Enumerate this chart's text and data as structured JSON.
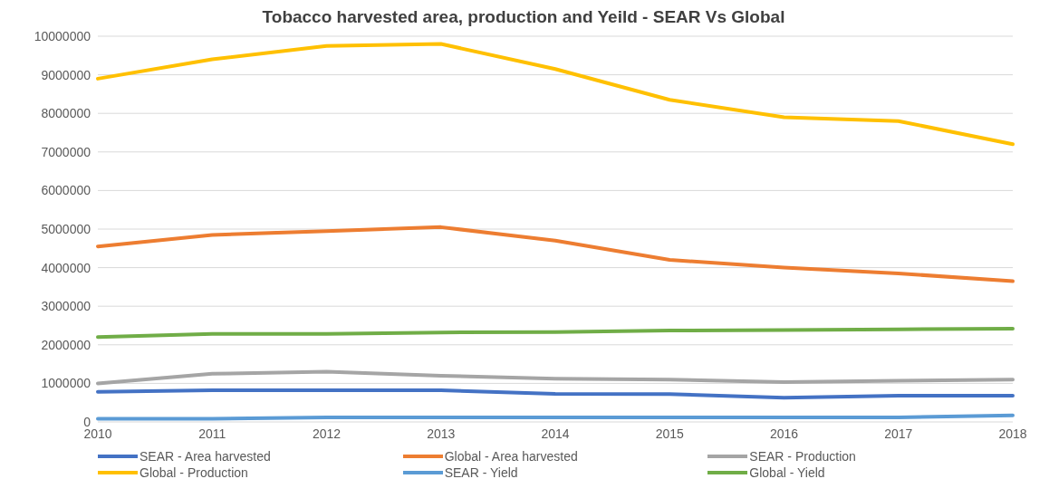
{
  "chart_data": {
    "type": "line",
    "title": "Tobacco harvested area, production and Yeild - SEAR Vs Global",
    "categories": [
      "2010",
      "2011",
      "2012",
      "2013",
      "2014",
      "2015",
      "2016",
      "2017",
      "2018"
    ],
    "series": [
      {
        "name": "SEAR - Area harvested",
        "color": "#4472c4",
        "values": [
          780000,
          820000,
          820000,
          820000,
          730000,
          720000,
          630000,
          680000,
          680000
        ]
      },
      {
        "name": "Global - Area harvested",
        "color": "#ed7d31",
        "values": [
          4550000,
          4850000,
          4950000,
          5050000,
          4700000,
          4200000,
          4000000,
          3850000,
          3650000
        ]
      },
      {
        "name": "SEAR - Production",
        "color": "#a5a5a5",
        "values": [
          1000000,
          1250000,
          1300000,
          1200000,
          1120000,
          1100000,
          1030000,
          1070000,
          1100000
        ]
      },
      {
        "name": "Global - Production",
        "color": "#ffc000",
        "values": [
          8900000,
          9400000,
          9750000,
          9800000,
          9150000,
          8350000,
          7900000,
          7800000,
          7200000
        ]
      },
      {
        "name": "SEAR - Yield",
        "color": "#5b9bd5",
        "values": [
          80000,
          80000,
          120000,
          120000,
          120000,
          120000,
          120000,
          120000,
          170000
        ]
      },
      {
        "name": "Global - Yield",
        "color": "#70ad47",
        "values": [
          2200000,
          2280000,
          2280000,
          2320000,
          2330000,
          2370000,
          2380000,
          2400000,
          2420000
        ]
      }
    ],
    "ylim": [
      0,
      10000000
    ],
    "yticks": [
      0,
      1000000,
      2000000,
      3000000,
      4000000,
      5000000,
      6000000,
      7000000,
      8000000,
      9000000,
      10000000
    ],
    "grid": "y",
    "legend": "bottom",
    "marker": "none",
    "line_style": "solid"
  }
}
